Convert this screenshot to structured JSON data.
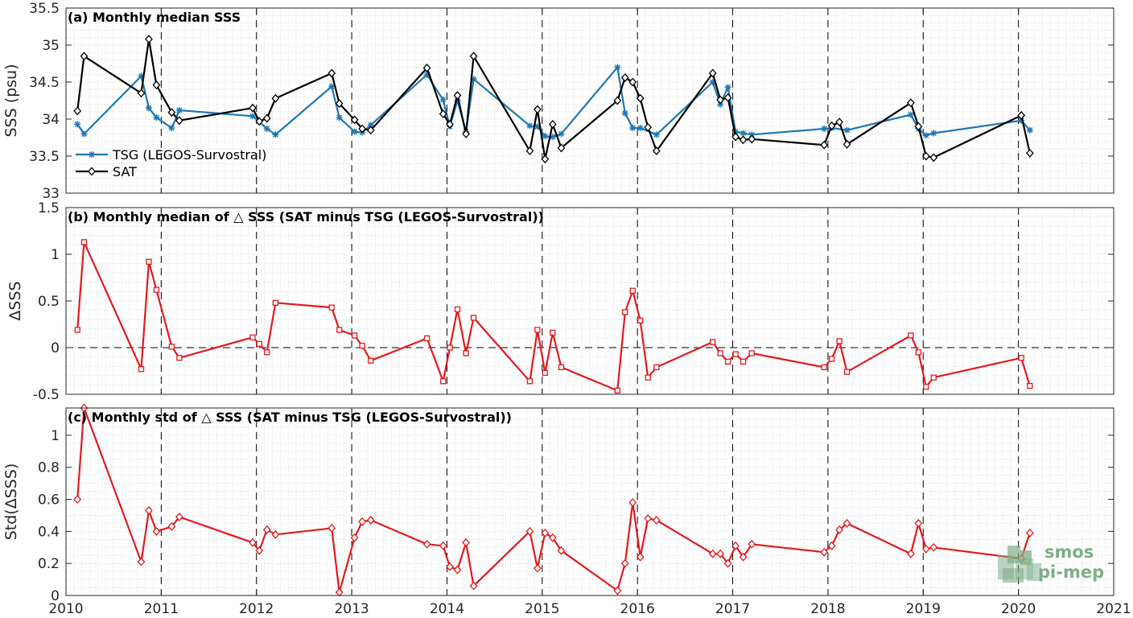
{
  "chart_data": [
    {
      "type": "line",
      "title": "(a) Monthly median SSS",
      "xlabel": "",
      "ylabel": "SSS (psu)",
      "xlim": [
        2010,
        2021
      ],
      "ylim": [
        33,
        35.5
      ],
      "yticks": [
        "33",
        "33.5",
        "34",
        "34.5",
        "35",
        "35.5"
      ],
      "xticks": [
        "2010",
        "2011",
        "2012",
        "2013",
        "2014",
        "2015",
        "2016",
        "2017",
        "2018",
        "2019",
        "2020",
        "2021"
      ],
      "legend_position": "bottom-left",
      "series": [
        {
          "name": "TSG (LEGOS-Survostral)",
          "color": "#1f77b4",
          "marker": "asterisk",
          "x": [
            2010.12,
            2010.19,
            2010.79,
            2010.87,
            2010.95,
            2011.11,
            2011.19,
            2011.96,
            2012.11,
            2012.2,
            2012.79,
            2012.87,
            2013.03,
            2013.11,
            2013.2,
            2013.79,
            2013.96,
            2014.03,
            2014.11,
            2014.2,
            2014.28,
            2014.87,
            2014.95,
            2015.03,
            2015.11,
            2015.2,
            2015.79,
            2015.87,
            2015.95,
            2016.03,
            2016.2,
            2016.79,
            2016.87,
            2016.95,
            2017.03,
            2017.11,
            2017.2,
            2017.96,
            2018.04,
            2018.2,
            2018.87,
            2018.95,
            2019.03,
            2019.11,
            2020.03,
            2020.12
          ],
          "y": [
            33.93,
            33.8,
            34.58,
            34.15,
            34.02,
            33.88,
            34.12,
            34.04,
            33.87,
            33.79,
            34.44,
            34.02,
            33.83,
            33.82,
            33.92,
            34.6,
            34.26,
            33.9,
            34.25,
            33.83,
            34.54,
            33.91,
            33.9,
            33.77,
            33.76,
            33.8,
            34.7,
            34.08,
            33.88,
            33.88,
            33.79,
            34.5,
            34.2,
            34.43,
            33.83,
            33.81,
            33.79,
            33.87,
            33.88,
            33.85,
            34.06,
            33.87,
            33.78,
            33.81,
            33.98,
            33.85
          ]
        },
        {
          "name": "SAT",
          "color": "#000000",
          "marker": "diamond",
          "x": [
            2010.12,
            2010.19,
            2010.79,
            2010.87,
            2010.95,
            2011.11,
            2011.19,
            2011.96,
            2012.03,
            2012.11,
            2012.2,
            2012.79,
            2012.87,
            2013.03,
            2013.11,
            2013.2,
            2013.79,
            2013.96,
            2014.03,
            2014.11,
            2014.2,
            2014.28,
            2014.87,
            2014.95,
            2015.03,
            2015.11,
            2015.2,
            2015.79,
            2015.87,
            2015.95,
            2016.03,
            2016.11,
            2016.2,
            2016.79,
            2016.87,
            2016.95,
            2017.03,
            2017.11,
            2017.2,
            2017.96,
            2018.04,
            2018.12,
            2018.2,
            2018.87,
            2018.95,
            2019.03,
            2019.11,
            2020.03,
            2020.12
          ],
          "y": [
            34.11,
            34.85,
            34.35,
            35.08,
            34.46,
            34.09,
            33.98,
            34.15,
            33.97,
            34.01,
            34.28,
            34.62,
            34.21,
            33.99,
            33.87,
            33.85,
            34.69,
            34.07,
            33.93,
            34.32,
            33.8,
            34.85,
            33.57,
            34.13,
            33.46,
            33.93,
            33.61,
            34.25,
            34.56,
            34.5,
            34.28,
            33.89,
            33.57,
            34.62,
            34.26,
            34.29,
            33.76,
            33.72,
            33.73,
            33.65,
            33.91,
            33.96,
            33.66,
            34.22,
            33.9,
            33.5,
            33.48,
            34.05,
            33.54
          ]
        }
      ]
    },
    {
      "type": "line",
      "title": "(b) Monthly median of △ SSS (SAT minus TSG (LEGOS-Survostral))",
      "xlabel": "",
      "ylabel": "ΔSSS",
      "xlim": [
        2010,
        2021
      ],
      "ylim": [
        -0.5,
        1.5
      ],
      "yticks": [
        "-0.5",
        "0",
        "0.5",
        "1",
        "1.5"
      ],
      "zero_line": true,
      "series": [
        {
          "name": "",
          "color": "#e41a1c",
          "marker": "square",
          "x": [
            2010.12,
            2010.19,
            2010.79,
            2010.87,
            2010.95,
            2011.11,
            2011.19,
            2011.96,
            2012.03,
            2012.11,
            2012.2,
            2012.79,
            2012.87,
            2013.03,
            2013.11,
            2013.2,
            2013.79,
            2013.96,
            2014.03,
            2014.11,
            2014.2,
            2014.28,
            2014.87,
            2014.95,
            2015.03,
            2015.11,
            2015.2,
            2015.79,
            2015.87,
            2015.95,
            2016.03,
            2016.11,
            2016.2,
            2016.79,
            2016.87,
            2016.95,
            2017.03,
            2017.11,
            2017.2,
            2017.96,
            2018.04,
            2018.12,
            2018.2,
            2018.87,
            2018.95,
            2019.03,
            2019.11,
            2020.03,
            2020.12
          ],
          "y": [
            0.19,
            1.13,
            -0.23,
            0.92,
            0.62,
            0.01,
            -0.11,
            0.11,
            0.04,
            -0.05,
            0.48,
            0.43,
            0.19,
            0.13,
            0.02,
            -0.14,
            0.1,
            -0.36,
            0.0,
            0.41,
            -0.06,
            0.32,
            -0.36,
            0.19,
            -0.27,
            0.16,
            -0.21,
            -0.46,
            0.38,
            0.61,
            0.29,
            -0.32,
            -0.21,
            0.06,
            -0.06,
            -0.15,
            -0.07,
            -0.15,
            -0.06,
            -0.21,
            -0.12,
            0.07,
            -0.26,
            0.13,
            -0.05,
            -0.42,
            -0.32,
            -0.11,
            -0.41
          ]
        }
      ]
    },
    {
      "type": "line",
      "title": "(c) Monthly std of △ SSS (SAT minus TSG (LEGOS-Survostral))",
      "xlabel": "",
      "ylabel": "Std(ΔSSS)",
      "xlim": [
        2010,
        2021
      ],
      "ylim": [
        0,
        1.17
      ],
      "yticks": [
        "0",
        "0.2",
        "0.4",
        "0.6",
        "0.8",
        "1"
      ],
      "series": [
        {
          "name": "",
          "color": "#e41a1c",
          "marker": "diamond",
          "x": [
            2010.12,
            2010.19,
            2010.79,
            2010.87,
            2010.95,
            2011.11,
            2011.19,
            2011.96,
            2012.03,
            2012.11,
            2012.2,
            2012.79,
            2012.87,
            2013.03,
            2013.11,
            2013.2,
            2013.79,
            2013.96,
            2014.03,
            2014.11,
            2014.2,
            2014.28,
            2014.87,
            2014.95,
            2015.03,
            2015.11,
            2015.2,
            2015.79,
            2015.87,
            2015.95,
            2016.03,
            2016.11,
            2016.2,
            2016.79,
            2016.87,
            2016.95,
            2017.03,
            2017.11,
            2017.2,
            2017.96,
            2018.04,
            2018.12,
            2018.2,
            2018.87,
            2018.95,
            2019.03,
            2019.11,
            2020.03,
            2020.12
          ],
          "y": [
            0.6,
            1.17,
            0.21,
            0.53,
            0.4,
            0.43,
            0.49,
            0.33,
            0.28,
            0.41,
            0.38,
            0.42,
            0.02,
            0.36,
            0.46,
            0.47,
            0.32,
            0.31,
            0.18,
            0.16,
            0.33,
            0.06,
            0.4,
            0.17,
            0.39,
            0.36,
            0.28,
            0.03,
            0.2,
            0.58,
            0.24,
            0.48,
            0.47,
            0.26,
            0.26,
            0.2,
            0.31,
            0.24,
            0.32,
            0.27,
            0.31,
            0.41,
            0.45,
            0.26,
            0.45,
            0.29,
            0.3,
            0.23,
            0.39
          ]
        }
      ]
    }
  ],
  "logo": {
    "line1": "smos",
    "line2": "pi-mep",
    "color": "#7fae8a"
  }
}
